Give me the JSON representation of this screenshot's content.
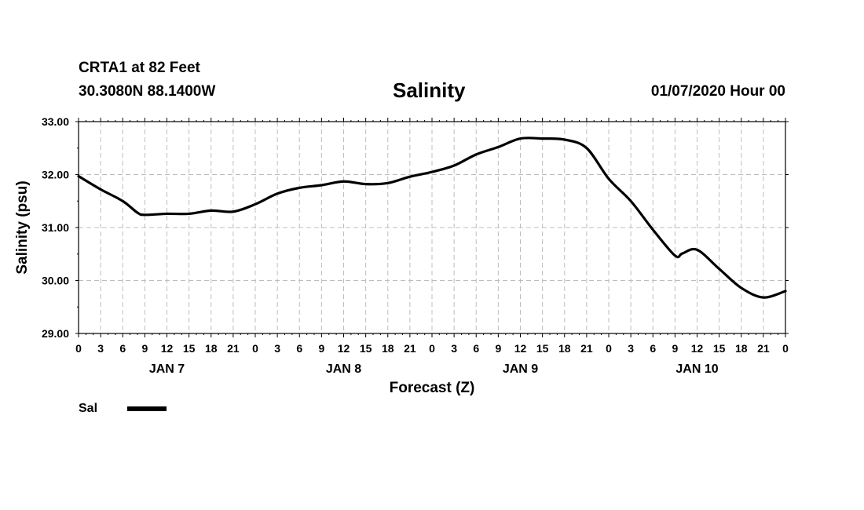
{
  "header": {
    "station": "CRTA1 at 82 Feet",
    "coords": "30.3080N 88.1400W",
    "title": "Salinity",
    "timestamp": "01/07/2020 Hour 00"
  },
  "chart_data": {
    "type": "line",
    "title": "Salinity",
    "xlabel": "Forecast (Z)",
    "ylabel": "Salinity (psu)",
    "ylim": [
      29.0,
      33.0
    ],
    "xlim": [
      0,
      96
    ],
    "yticks": [
      "29.00",
      "30.00",
      "31.00",
      "32.00",
      "33.00"
    ],
    "xtick_labels": [
      "0",
      "3",
      "6",
      "9",
      "12",
      "15",
      "18",
      "21",
      "0",
      "3",
      "6",
      "9",
      "12",
      "15",
      "18",
      "21",
      "0",
      "3",
      "6",
      "9",
      "12",
      "15",
      "18",
      "21",
      "0",
      "3",
      "6",
      "9",
      "12",
      "15",
      "18",
      "21",
      "0"
    ],
    "day_labels": [
      {
        "label": "JAN 7",
        "hour": 12
      },
      {
        "label": "JAN 8",
        "hour": 36
      },
      {
        "label": "JAN 9",
        "hour": 60
      },
      {
        "label": "JAN 10",
        "hour": 84
      }
    ],
    "grid": true,
    "legend": [
      {
        "name": "Sal",
        "color": "#000000"
      }
    ],
    "series": [
      {
        "name": "Sal",
        "x": [
          0,
          3,
          6,
          8,
          9,
          12,
          15,
          18,
          21,
          24,
          27,
          30,
          33,
          36,
          39,
          42,
          45,
          48,
          51,
          54,
          57,
          60,
          63,
          66,
          69,
          72,
          75,
          78,
          81,
          82,
          84,
          87,
          90,
          93,
          96
        ],
        "values": [
          31.97,
          31.72,
          31.5,
          31.28,
          31.24,
          31.26,
          31.26,
          31.32,
          31.3,
          31.44,
          31.64,
          31.75,
          31.8,
          31.87,
          31.82,
          31.84,
          31.96,
          32.05,
          32.17,
          32.38,
          32.52,
          32.68,
          32.68,
          32.66,
          32.5,
          31.92,
          31.5,
          30.96,
          30.47,
          30.51,
          30.58,
          30.22,
          29.86,
          29.68,
          29.8
        ]
      }
    ]
  }
}
